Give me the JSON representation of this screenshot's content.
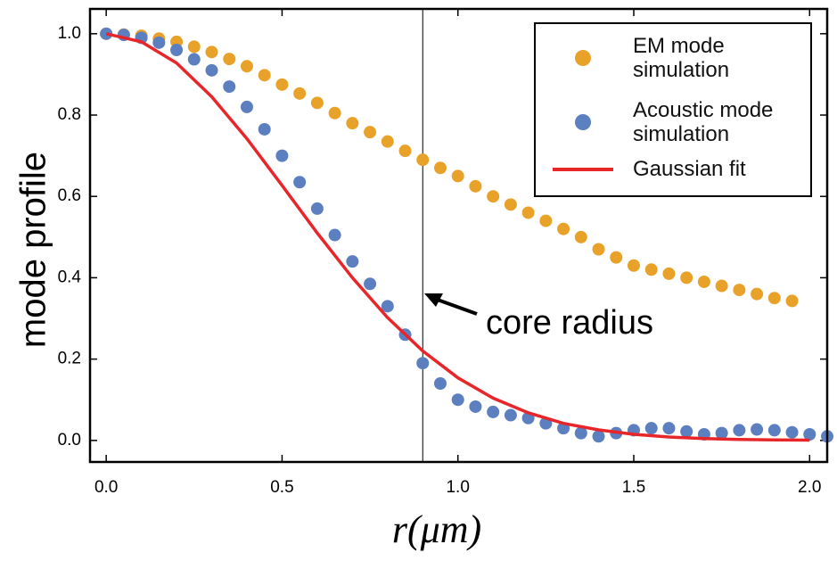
{
  "chart_data": {
    "type": "scatter",
    "xlabel": "r(μm)",
    "ylabel": "mode profile",
    "xlim": [
      -0.046,
      2.05
    ],
    "ylim": [
      -0.053,
      1.061
    ],
    "xticks": [
      {
        "value": 0,
        "label": "0.0"
      },
      {
        "value": 0.5,
        "label": "0.5"
      },
      {
        "value": 1,
        "label": "1.0"
      },
      {
        "value": 1.5,
        "label": "1.5"
      },
      {
        "value": 2,
        "label": "2.0"
      }
    ],
    "yticks": [
      {
        "value": 0,
        "label": "0.0"
      },
      {
        "value": 0.2,
        "label": "0.2"
      },
      {
        "value": 0.4,
        "label": "0.4"
      },
      {
        "value": 0.6,
        "label": "0.6"
      },
      {
        "value": 0.8,
        "label": "0.8"
      },
      {
        "value": 1,
        "label": "1.0"
      }
    ],
    "legend": "upper right",
    "annotation": {
      "text": "core radius",
      "x": 0.9
    },
    "series": [
      {
        "name": "EM mode simulation",
        "color": "#e8a22a",
        "style": "markers",
        "x": [
          0,
          0.05,
          0.1,
          0.15,
          0.2,
          0.25,
          0.3,
          0.35,
          0.4,
          0.45,
          0.5,
          0.55,
          0.6,
          0.65,
          0.7,
          0.75,
          0.8,
          0.85,
          0.9,
          0.95,
          1.0,
          1.05,
          1.1,
          1.15,
          1.2,
          1.25,
          1.3,
          1.35,
          1.4,
          1.45,
          1.5,
          1.55,
          1.6,
          1.65,
          1.7,
          1.75,
          1.8,
          1.85,
          1.9,
          1.95
        ],
        "values": [
          1.0,
          0.998,
          0.995,
          0.988,
          0.98,
          0.968,
          0.955,
          0.938,
          0.92,
          0.898,
          0.875,
          0.853,
          0.83,
          0.805,
          0.78,
          0.758,
          0.735,
          0.712,
          0.69,
          0.67,
          0.65,
          0.625,
          0.6,
          0.58,
          0.56,
          0.54,
          0.52,
          0.5,
          0.47,
          0.45,
          0.43,
          0.42,
          0.41,
          0.4,
          0.39,
          0.38,
          0.37,
          0.36,
          0.35,
          0.343
        ]
      },
      {
        "name": "Acoustic mode simulation",
        "color": "#5b7fbf",
        "style": "markers",
        "x": [
          0,
          0.05,
          0.1,
          0.15,
          0.2,
          0.25,
          0.3,
          0.35,
          0.4,
          0.45,
          0.5,
          0.55,
          0.6,
          0.65,
          0.7,
          0.75,
          0.8,
          0.85,
          0.9,
          0.95,
          1.0,
          1.05,
          1.1,
          1.15,
          1.2,
          1.25,
          1.3,
          1.35,
          1.4,
          1.45,
          1.5,
          1.55,
          1.6,
          1.65,
          1.7,
          1.75,
          1.8,
          1.85,
          1.9,
          1.95,
          2.0,
          2.05
        ],
        "values": [
          1.0,
          0.997,
          0.99,
          0.978,
          0.96,
          0.937,
          0.91,
          0.87,
          0.82,
          0.765,
          0.7,
          0.635,
          0.57,
          0.505,
          0.44,
          0.385,
          0.33,
          0.26,
          0.19,
          0.14,
          0.1,
          0.083,
          0.07,
          0.062,
          0.055,
          0.042,
          0.03,
          0.018,
          0.01,
          0.018,
          0.025,
          0.03,
          0.03,
          0.022,
          0.015,
          0.018,
          0.025,
          0.027,
          0.025,
          0.02,
          0.015,
          0.01
        ]
      },
      {
        "name": "Gaussian fit",
        "color": "#e8262a",
        "style": "line",
        "x": [
          0,
          0.1,
          0.2,
          0.3,
          0.4,
          0.5,
          0.6,
          0.7,
          0.8,
          0.9,
          1.0,
          1.1,
          1.2,
          1.3,
          1.4,
          1.5,
          1.6,
          1.7,
          1.8,
          1.9,
          2.0
        ],
        "values": [
          1.0,
          0.98,
          0.928,
          0.845,
          0.742,
          0.627,
          0.51,
          0.4,
          0.302,
          0.22,
          0.154,
          0.104,
          0.068,
          0.042,
          0.026,
          0.015,
          0.0084,
          0.0045,
          0.0024,
          0.0012,
          0.0006
        ]
      }
    ]
  }
}
